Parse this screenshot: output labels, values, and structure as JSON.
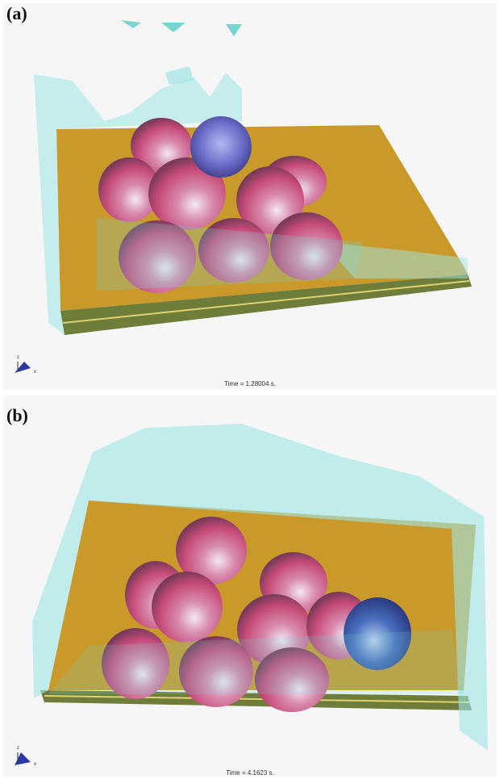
{
  "panels": [
    {
      "label": "(a)",
      "time": "Time = 1.28004 s.",
      "axis_z": "z",
      "axis_x": "x"
    },
    {
      "label": "(b)",
      "time": "Time = 4.1623 s.",
      "axis_z": "z",
      "axis_x": "x"
    }
  ]
}
